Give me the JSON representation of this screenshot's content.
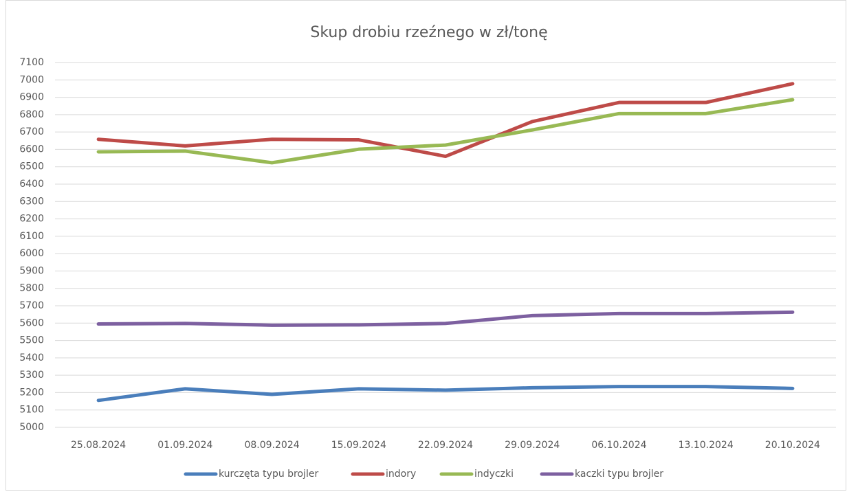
{
  "chart_data": {
    "type": "line",
    "title": "Skup drobiu rzeźnego w zł/tonę",
    "categories": [
      "25.08.2024",
      "01.09.2024",
      "08.09.2024",
      "15.09.2024",
      "22.09.2024",
      "29.09.2024",
      "06.10.2024",
      "13.10.2024",
      "20.10.2024"
    ],
    "series": [
      {
        "name": "kurczęta typu brojler",
        "color": "#4a7ebb",
        "values": [
          5155,
          5222,
          5190,
          5222,
          5214,
          5228,
          5235,
          5235,
          5224
        ]
      },
      {
        "name": "indory",
        "color": "#be4b48",
        "values": [
          6658,
          6620,
          6658,
          6655,
          6560,
          6760,
          6870,
          6870,
          6978
        ]
      },
      {
        "name": "indyczki",
        "color": "#98b954",
        "values": [
          6586,
          6590,
          6523,
          6601,
          6625,
          6712,
          6806,
          6806,
          6886
        ]
      },
      {
        "name": "kaczki typu brojler",
        "color": "#7d60a0",
        "values": [
          5595,
          5598,
          5588,
          5590,
          5598,
          5643,
          5655,
          5655,
          5663
        ]
      }
    ],
    "ylim": [
      5000,
      7100
    ],
    "yticks": [
      5000,
      5100,
      5200,
      5300,
      5400,
      5500,
      5600,
      5700,
      5800,
      5900,
      6000,
      6100,
      6200,
      6300,
      6400,
      6500,
      6600,
      6700,
      6800,
      6900,
      7000,
      7100
    ],
    "grid": true,
    "legend": "bottom"
  }
}
